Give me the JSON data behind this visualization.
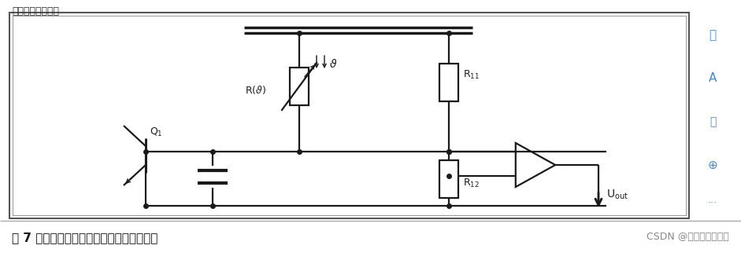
{
  "fig_width": 9.41,
  "fig_height": 3.31,
  "dpi": 100,
  "bg_color": "#ffffff",
  "line_color": "#1a1a1a",
  "caption": "图 7 采用数字方法获得的温度的基本原理图",
  "caption_fontsize": 11,
  "watermark": "CSDN @小幽余生不加糖",
  "watermark_fontsize": 9,
  "header_text": "电路图如所示所示",
  "header_fontsize": 9,
  "icons": [
    "🖊",
    "A",
    "🖧",
    "⊕",
    "..."
  ]
}
